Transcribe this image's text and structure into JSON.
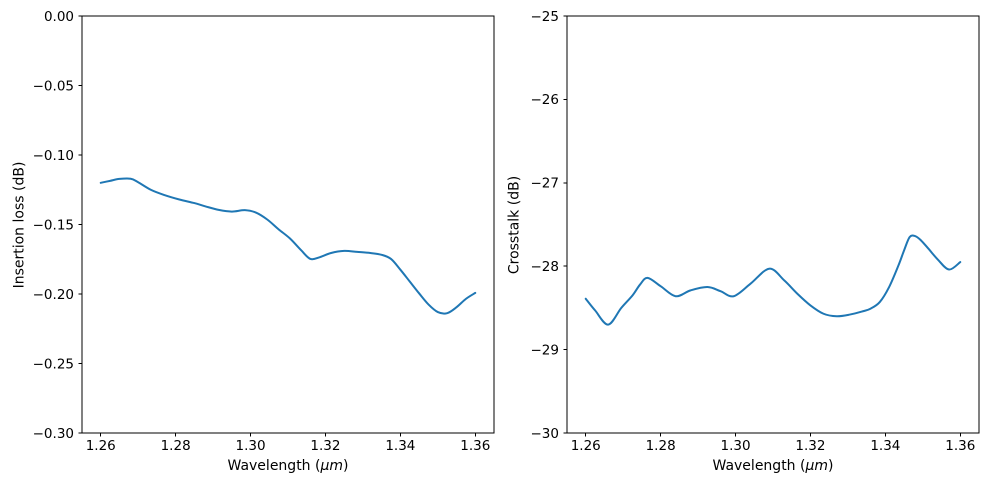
{
  "figure": {
    "background": "#ffffff",
    "accent_line_color": "#1f77b4"
  },
  "chart_data": [
    {
      "type": "line",
      "title": "",
      "xlabel": "Wavelength (μm)",
      "xlabel_prefix": "Wavelength (",
      "xlabel_italic": "μm",
      "xlabel_suffix": ")",
      "ylabel": "Insertion loss (dB)",
      "xlim": [
        1.255,
        1.365
      ],
      "ylim": [
        -0.3,
        0.0
      ],
      "grid": false,
      "legend": null,
      "xticks": {
        "values": [
          1.26,
          1.28,
          1.3,
          1.32,
          1.34,
          1.36
        ],
        "labels": [
          "1.26",
          "1.28",
          "1.30",
          "1.32",
          "1.34",
          "1.36"
        ]
      },
      "yticks": {
        "values": [
          0.0,
          -0.05,
          -0.1,
          -0.15,
          -0.2,
          -0.25,
          -0.3
        ],
        "labels": [
          "0.00",
          "−0.05",
          "−0.10",
          "−0.15",
          "−0.20",
          "−0.25",
          "−0.30"
        ]
      },
      "series": [
        {
          "name": "insertion-loss",
          "color": "#1f77b4",
          "x": [
            1.26,
            1.2625,
            1.265,
            1.268,
            1.27,
            1.2735,
            1.277,
            1.281,
            1.285,
            1.288,
            1.2915,
            1.295,
            1.2985,
            1.3015,
            1.3045,
            1.3075,
            1.3105,
            1.3135,
            1.316,
            1.3185,
            1.3215,
            1.325,
            1.3285,
            1.332,
            1.335,
            1.3375,
            1.34,
            1.3425,
            1.345,
            1.3475,
            1.35,
            1.3525,
            1.355,
            1.3575,
            1.36
          ],
          "y": [
            -0.12,
            -0.1186,
            -0.1172,
            -0.1171,
            -0.1196,
            -0.1252,
            -0.1288,
            -0.132,
            -0.1346,
            -0.137,
            -0.1395,
            -0.1407,
            -0.1397,
            -0.1415,
            -0.1465,
            -0.1535,
            -0.16,
            -0.1685,
            -0.1748,
            -0.1735,
            -0.1705,
            -0.169,
            -0.1697,
            -0.1705,
            -0.1718,
            -0.1748,
            -0.1825,
            -0.191,
            -0.1995,
            -0.2075,
            -0.213,
            -0.2138,
            -0.2095,
            -0.2035,
            -0.1992
          ]
        }
      ]
    },
    {
      "type": "line",
      "title": "",
      "xlabel": "Wavelength (μm)",
      "xlabel_prefix": "Wavelength (",
      "xlabel_italic": "μm",
      "xlabel_suffix": ")",
      "ylabel": "Crosstalk (dB)",
      "xlim": [
        1.255,
        1.365
      ],
      "ylim": [
        -30,
        -25
      ],
      "grid": false,
      "legend": null,
      "xticks": {
        "values": [
          1.26,
          1.28,
          1.3,
          1.32,
          1.34,
          1.36
        ],
        "labels": [
          "1.26",
          "1.28",
          "1.30",
          "1.32",
          "1.34",
          "1.36"
        ]
      },
      "yticks": {
        "values": [
          -25,
          -26,
          -27,
          -28,
          -29,
          -30
        ],
        "labels": [
          "−25",
          "−26",
          "−27",
          "−28",
          "−29",
          "−30"
        ]
      },
      "series": [
        {
          "name": "crosstalk",
          "color": "#1f77b4",
          "x": [
            1.26,
            1.2625,
            1.266,
            1.2695,
            1.2725,
            1.2745,
            1.2765,
            1.28,
            1.284,
            1.288,
            1.2925,
            1.296,
            1.2995,
            1.304,
            1.309,
            1.313,
            1.3165,
            1.32,
            1.3235,
            1.327,
            1.3305,
            1.334,
            1.336,
            1.3385,
            1.341,
            1.3435,
            1.345,
            1.3465,
            1.348,
            1.3495,
            1.3515,
            1.354,
            1.357,
            1.36
          ],
          "y": [
            -28.39,
            -28.53,
            -28.7,
            -28.5,
            -28.35,
            -28.22,
            -28.14,
            -28.24,
            -28.36,
            -28.29,
            -28.25,
            -28.3,
            -28.36,
            -28.21,
            -28.03,
            -28.17,
            -28.33,
            -28.47,
            -28.57,
            -28.6,
            -28.58,
            -28.54,
            -28.51,
            -28.43,
            -28.25,
            -27.99,
            -27.81,
            -27.65,
            -27.64,
            -27.69,
            -27.79,
            -27.92,
            -28.04,
            -27.95
          ]
        }
      ]
    }
  ]
}
